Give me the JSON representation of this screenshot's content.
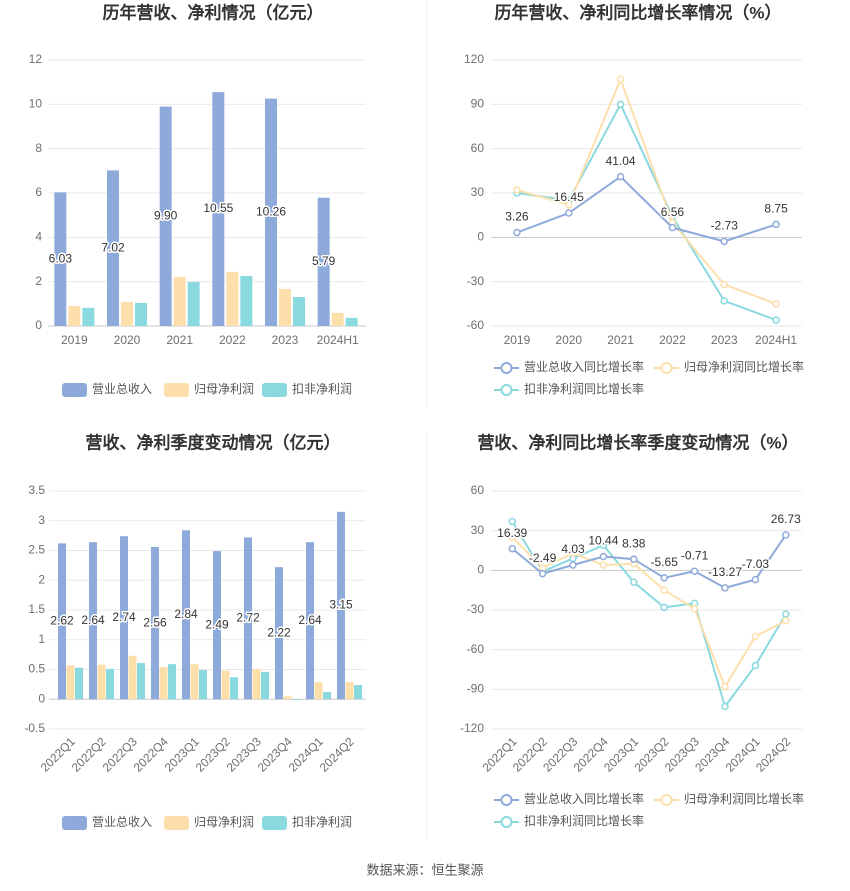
{
  "source": "数据来源：恒生聚源",
  "colors": {
    "grid": "#e9e9e9",
    "axis": "#c8c8c8"
  },
  "chart_data": [
    {
      "type": "bar",
      "title": "历年营收、净利情况（亿元）",
      "categories": [
        "2019",
        "2020",
        "2021",
        "2022",
        "2023",
        "2024H1"
      ],
      "series": [
        {
          "name": "营业总收入",
          "color": "#8eaadb",
          "values": [
            6.03,
            7.02,
            9.9,
            10.55,
            10.26,
            5.79
          ],
          "data_labels": true
        },
        {
          "name": "归母净利润",
          "color": "#fddfab",
          "values": [
            0.9,
            1.08,
            2.21,
            2.44,
            1.67,
            0.59
          ]
        },
        {
          "name": "扣非净利润",
          "color": "#8ad9df",
          "values": [
            0.82,
            1.04,
            1.98,
            2.26,
            1.31,
            0.37
          ]
        }
      ],
      "ylim": [
        0,
        12
      ],
      "yticks": [
        0,
        2,
        4,
        6,
        8,
        10,
        12
      ],
      "grid": true,
      "legend": "bottom"
    },
    {
      "type": "line",
      "title": "历年营收、净利同比增长率情况（%）",
      "categories": [
        "2019",
        "2020",
        "2021",
        "2022",
        "2023",
        "2024H1"
      ],
      "series": [
        {
          "name": "营业总收入同比增长率",
          "color": "#8eaadb",
          "values": [
            3.26,
            16.45,
            41.04,
            6.56,
            -2.73,
            8.75
          ],
          "data_labels": true
        },
        {
          "name": "归母净利润同比增长率",
          "color": "#fddfab",
          "values": [
            32,
            22,
            107,
            10,
            -32,
            -45
          ]
        },
        {
          "name": "扣非净利润同比增长率",
          "color": "#8ad9df",
          "values": [
            30,
            25,
            90,
            14,
            -43,
            -56
          ]
        }
      ],
      "ylim": [
        -60,
        120
      ],
      "yticks": [
        -60,
        -30,
        0,
        30,
        60,
        90,
        120
      ],
      "grid": true,
      "legend": "bottom"
    },
    {
      "type": "bar",
      "title": "营收、净利季度变动情况（亿元）",
      "categories": [
        "2022Q1",
        "2022Q2",
        "2022Q3",
        "2022Q4",
        "2023Q1",
        "2023Q2",
        "2023Q3",
        "2023Q4",
        "2024Q1",
        "2024Q2"
      ],
      "series": [
        {
          "name": "营业总收入",
          "color": "#8eaadb",
          "values": [
            2.62,
            2.64,
            2.74,
            2.56,
            2.84,
            2.49,
            2.72,
            2.22,
            2.64,
            3.15
          ],
          "data_labels": true
        },
        {
          "name": "归母净利润",
          "color": "#fddfab",
          "values": [
            0.57,
            0.58,
            0.73,
            0.54,
            0.59,
            0.48,
            0.51,
            0.05,
            0.29,
            0.29
          ]
        },
        {
          "name": "扣非净利润",
          "color": "#8ad9df",
          "values": [
            0.53,
            0.51,
            0.61,
            0.59,
            0.49,
            0.37,
            0.46,
            -0.01,
            0.12,
            0.24
          ]
        }
      ],
      "ylim": [
        -0.5,
        3.5
      ],
      "yticks": [
        -0.5,
        0,
        0.5,
        1,
        1.5,
        2,
        2.5,
        3,
        3.5
      ],
      "grid": true,
      "legend": "bottom"
    },
    {
      "type": "line",
      "title": "营收、净利同比增长率季度变动情况（%）",
      "categories": [
        "2022Q1",
        "2022Q2",
        "2022Q3",
        "2022Q4",
        "2023Q1",
        "2023Q2",
        "2023Q3",
        "2023Q4",
        "2024Q1",
        "2024Q2"
      ],
      "series": [
        {
          "name": "营业总收入同比增长率",
          "color": "#8eaadb",
          "values": [
            16.39,
            -2.49,
            4.03,
            10.44,
            8.38,
            -5.65,
            -0.71,
            -13.27,
            -7.03,
            26.73
          ],
          "data_labels": true
        },
        {
          "name": "归母净利润同比增长率",
          "color": "#fddfab",
          "values": [
            25,
            2,
            13,
            4,
            5,
            -15,
            -29,
            -88,
            -50,
            -38
          ]
        },
        {
          "name": "扣非净利润同比增长率",
          "color": "#8ad9df",
          "values": [
            37,
            -1,
            9,
            19,
            -9,
            -28,
            -25,
            -103,
            -72,
            -33
          ]
        }
      ],
      "ylim": [
        -120,
        60
      ],
      "yticks": [
        -120,
        -90,
        -60,
        -30,
        0,
        30,
        60
      ],
      "grid": true,
      "legend": "bottom"
    }
  ]
}
